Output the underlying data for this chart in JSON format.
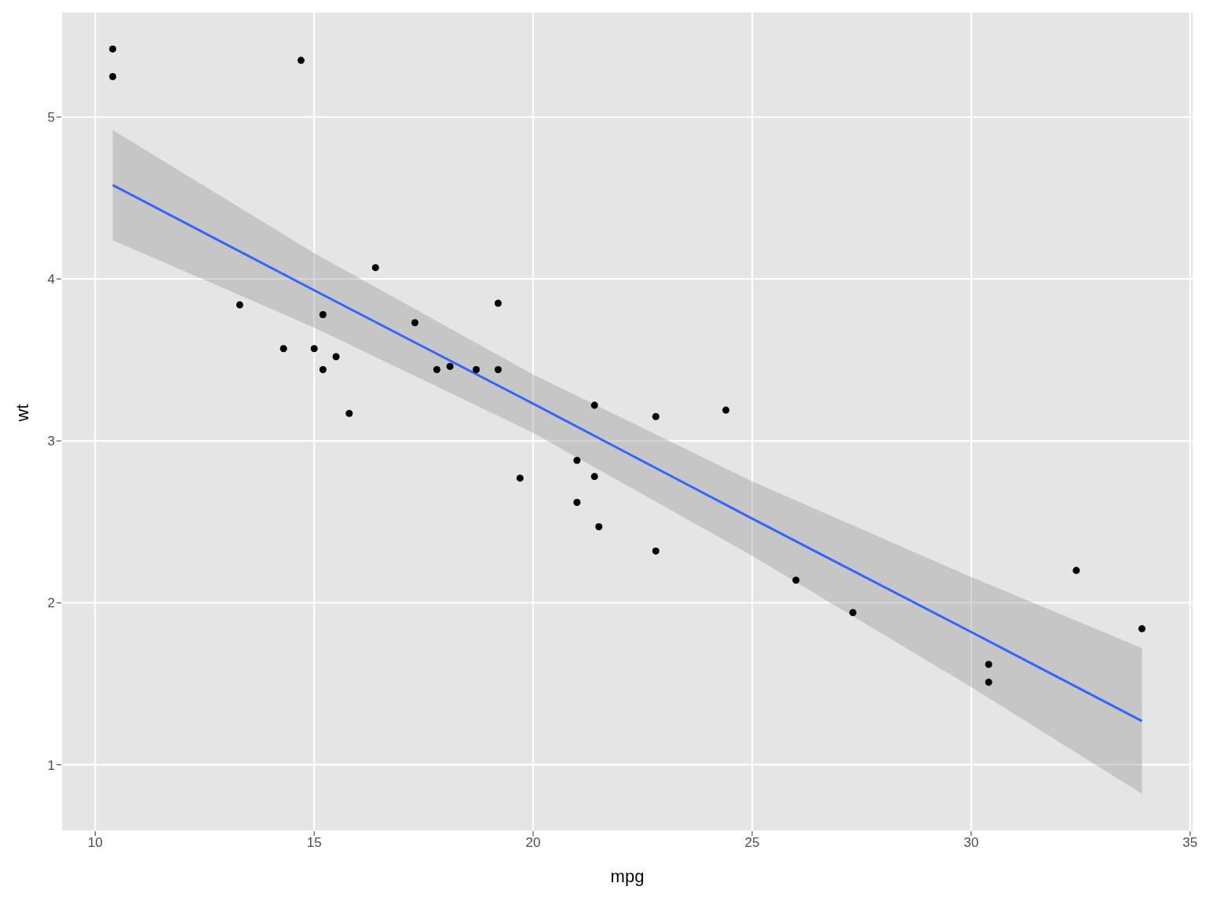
{
  "chart_data": {
    "type": "scatter",
    "xlabel": "mpg",
    "ylabel": "wt",
    "xlim": [
      9.225,
      35.075
    ],
    "xticks": [
      10,
      15,
      20,
      25,
      30,
      35
    ],
    "ylim": [
      0.59,
      5.65
    ],
    "yticks": [
      1,
      2,
      3,
      4,
      5
    ],
    "grid": true,
    "legend": false,
    "series": [
      {
        "marker": "circle",
        "color": "#000000",
        "x": [
          21.0,
          21.0,
          22.8,
          21.4,
          18.7,
          18.1,
          14.3,
          24.4,
          22.8,
          19.2,
          17.8,
          16.4,
          17.3,
          15.2,
          10.4,
          10.4,
          14.7,
          32.4,
          30.4,
          33.9,
          21.5,
          15.5,
          15.2,
          13.3,
          19.2,
          27.3,
          26.0,
          30.4,
          15.8,
          19.7,
          15.0,
          21.4
        ],
        "values": [
          2.62,
          2.88,
          2.32,
          3.22,
          3.44,
          3.46,
          3.57,
          3.19,
          3.15,
          3.44,
          3.44,
          4.07,
          3.73,
          3.78,
          5.25,
          5.42,
          5.35,
          2.2,
          1.62,
          1.84,
          2.47,
          3.52,
          3.44,
          3.84,
          3.85,
          1.94,
          2.14,
          1.51,
          3.17,
          2.77,
          3.57,
          2.78
        ]
      },
      {
        "type": "line",
        "color": "#3366ff",
        "x": [
          10.4,
          15,
          20,
          25,
          30,
          33.9
        ],
        "values": [
          4.58,
          3.93,
          3.23,
          2.52,
          1.82,
          1.27
        ],
        "lower": [
          4.24,
          3.7,
          3.05,
          2.29,
          1.48,
          0.82
        ],
        "upper": [
          4.92,
          4.16,
          3.41,
          2.75,
          2.16,
          1.72
        ],
        "line_style": "solid",
        "marker": "none"
      }
    ]
  }
}
